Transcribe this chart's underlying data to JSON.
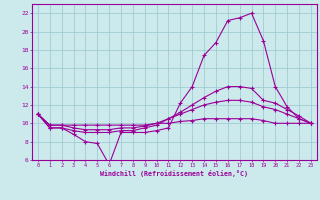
{
  "xlabel": "Windchill (Refroidissement éolien,°C)",
  "background_color": "#cce9ec",
  "grid_color": "#a0cdd2",
  "line_color": "#990099",
  "x_values": [
    0,
    1,
    2,
    3,
    4,
    5,
    6,
    7,
    8,
    9,
    10,
    11,
    12,
    13,
    14,
    15,
    16,
    17,
    18,
    19,
    20,
    21,
    22,
    23
  ],
  "line1": [
    11.0,
    9.5,
    9.5,
    8.8,
    8.0,
    7.8,
    5.5,
    9.0,
    9.0,
    9.0,
    9.2,
    9.5,
    12.2,
    14.0,
    17.4,
    18.8,
    21.2,
    21.5,
    22.0,
    19.0,
    14.0,
    11.8,
    10.5,
    10.0
  ],
  "line2": [
    11.0,
    9.5,
    9.5,
    9.2,
    9.0,
    9.0,
    9.0,
    9.2,
    9.2,
    9.5,
    9.8,
    10.5,
    11.2,
    12.0,
    12.8,
    13.5,
    14.0,
    14.0,
    13.8,
    12.5,
    12.2,
    11.5,
    10.8,
    10.0
  ],
  "line3": [
    11.0,
    9.8,
    9.8,
    9.5,
    9.3,
    9.3,
    9.3,
    9.5,
    9.5,
    9.7,
    10.0,
    10.5,
    11.0,
    11.5,
    12.0,
    12.3,
    12.5,
    12.5,
    12.3,
    11.8,
    11.5,
    11.0,
    10.5,
    10.0
  ],
  "line4": [
    11.0,
    9.8,
    9.8,
    9.8,
    9.8,
    9.8,
    9.8,
    9.8,
    9.8,
    9.8,
    10.0,
    10.0,
    10.2,
    10.3,
    10.5,
    10.5,
    10.5,
    10.5,
    10.5,
    10.3,
    10.0,
    10.0,
    10.0,
    10.0
  ],
  "ylim": [
    6,
    23
  ],
  "xlim_min": -0.5,
  "xlim_max": 23.5,
  "yticks": [
    6,
    8,
    10,
    12,
    14,
    16,
    18,
    20,
    22
  ],
  "xticks": [
    0,
    1,
    2,
    3,
    4,
    5,
    6,
    7,
    8,
    9,
    10,
    11,
    12,
    13,
    14,
    15,
    16,
    17,
    18,
    19,
    20,
    21,
    22,
    23
  ]
}
